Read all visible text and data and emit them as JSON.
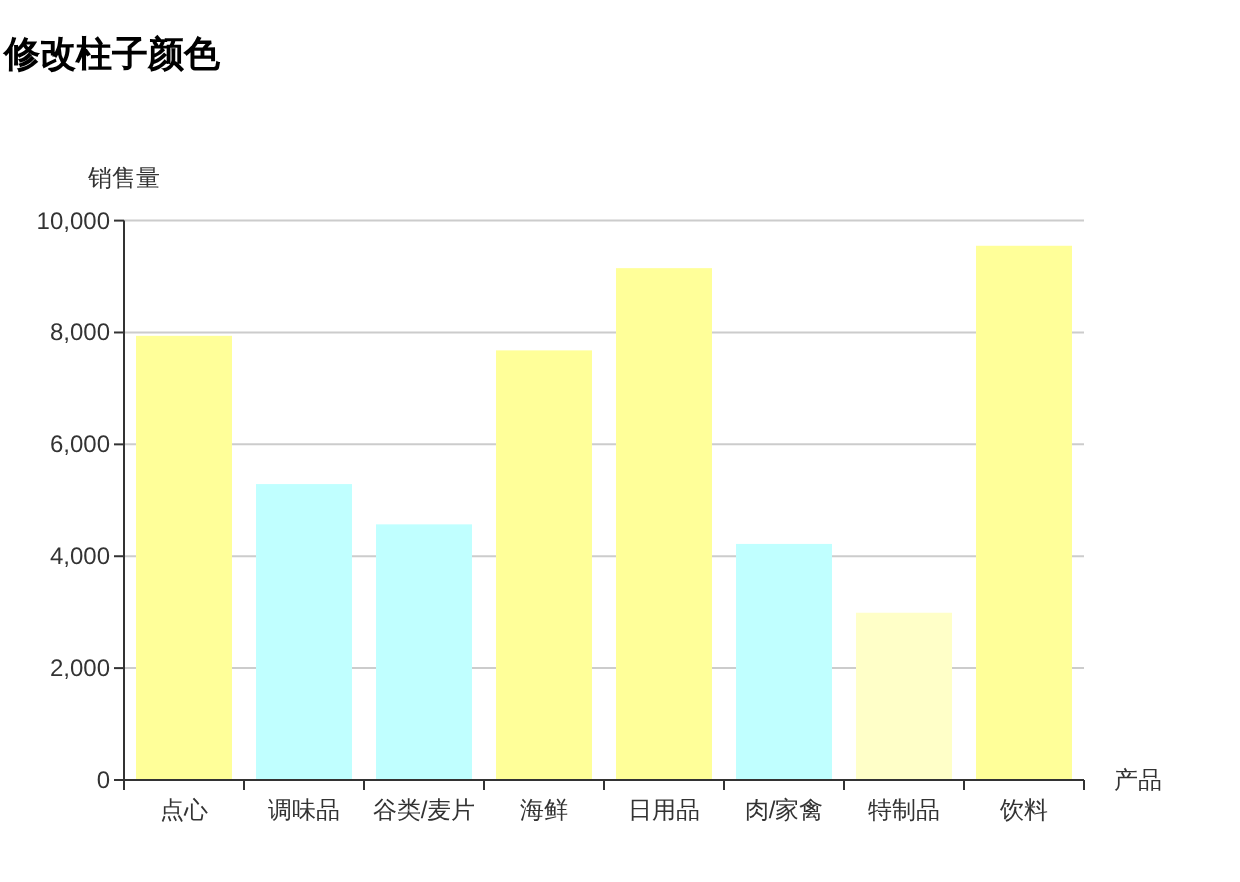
{
  "chart_data": {
    "type": "bar",
    "title": "修改柱子颜色",
    "xlabel": "产品",
    "ylabel": "销售量",
    "categories": [
      "点心",
      "调味品",
      "谷类/麦片",
      "海鲜",
      "日用品",
      "肉/家禽",
      "特制品",
      "饮料"
    ],
    "values": [
      7940,
      5290,
      4570,
      7680,
      9150,
      4220,
      2990,
      9550
    ],
    "colors": [
      "#ffff99",
      "#c0ffff",
      "#c0ffff",
      "#ffff99",
      "#ffff99",
      "#c0ffff",
      "#ffffc8",
      "#ffff99"
    ],
    "ylim": [
      0,
      10000
    ],
    "yticks": [
      0,
      {
        "value": 2000,
        "label": "2,000"
      },
      {
        "value": 4000,
        "label": "4,000"
      },
      {
        "value": 6000,
        "label": "6,000"
      },
      {
        "value": 8000,
        "label": "8,000"
      },
      {
        "value": 10000,
        "label": "10,000"
      }
    ],
    "grid": "y"
  }
}
